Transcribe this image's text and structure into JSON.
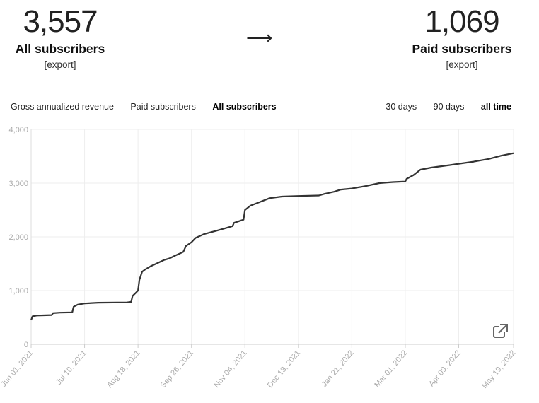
{
  "stats": {
    "left": {
      "value": "3,557",
      "label": "All subscribers",
      "export": "[export]"
    },
    "arrow": "⟶",
    "right": {
      "value": "1,069",
      "label": "Paid subscribers",
      "export": "[export]"
    }
  },
  "tabs": [
    {
      "label": "Gross annualized revenue",
      "active": false
    },
    {
      "label": "Paid subscribers",
      "active": false
    },
    {
      "label": "All subscribers",
      "active": true
    }
  ],
  "ranges": [
    {
      "label": "30 days",
      "active": false
    },
    {
      "label": "90 days",
      "active": false
    },
    {
      "label": "all time",
      "active": true
    }
  ],
  "icons": {
    "open_external": "external-link-icon"
  },
  "colors": {
    "line": "#333333",
    "grid": "#eeeeee",
    "axis_text": "#aaaaaa"
  },
  "chart_data": {
    "type": "line",
    "title": "",
    "xlabel": "",
    "ylabel": "",
    "ylim": [
      0,
      4000
    ],
    "yticks": [
      0,
      1000,
      2000,
      3000,
      4000
    ],
    "ytick_labels": [
      "0",
      "1,000",
      "2,000",
      "3,000",
      "4,000"
    ],
    "xticks": [
      "2021-06-01",
      "2021-07-10",
      "2021-08-18",
      "2021-09-26",
      "2021-11-04",
      "2021-12-13",
      "2022-01-21",
      "2022-03-01",
      "2022-04-09",
      "2022-05-19"
    ],
    "xtick_labels": [
      "Jun 01, 2021",
      "Jul 10, 2021",
      "Aug 18, 2021",
      "Sep 26, 2021",
      "Nov 04, 2021",
      "Dec 13, 2021",
      "Jan 21, 2022",
      "Mar 01, 2022",
      "Apr 09, 2022",
      "May 19, 2022"
    ],
    "grid": true,
    "series": [
      {
        "points": [
          [
            "2021-06-01",
            450
          ],
          [
            "2021-06-02",
            520
          ],
          [
            "2021-06-05",
            535
          ],
          [
            "2021-06-10",
            540
          ],
          [
            "2021-06-16",
            545
          ],
          [
            "2021-06-17",
            580
          ],
          [
            "2021-06-22",
            590
          ],
          [
            "2021-07-01",
            595
          ],
          [
            "2021-07-02",
            700
          ],
          [
            "2021-07-05",
            740
          ],
          [
            "2021-07-10",
            760
          ],
          [
            "2021-07-20",
            775
          ],
          [
            "2021-08-10",
            780
          ],
          [
            "2021-08-13",
            790
          ],
          [
            "2021-08-14",
            900
          ],
          [
            "2021-08-16",
            950
          ],
          [
            "2021-08-18",
            1000
          ],
          [
            "2021-08-19",
            1200
          ],
          [
            "2021-08-21",
            1350
          ],
          [
            "2021-08-23",
            1390
          ],
          [
            "2021-08-27",
            1450
          ],
          [
            "2021-09-01",
            1510
          ],
          [
            "2021-09-06",
            1570
          ],
          [
            "2021-09-10",
            1600
          ],
          [
            "2021-09-14",
            1650
          ],
          [
            "2021-09-20",
            1720
          ],
          [
            "2021-09-22",
            1830
          ],
          [
            "2021-09-26",
            1900
          ],
          [
            "2021-09-29",
            1980
          ],
          [
            "2021-10-05",
            2050
          ],
          [
            "2021-10-15",
            2120
          ],
          [
            "2021-10-22",
            2170
          ],
          [
            "2021-10-26",
            2200
          ],
          [
            "2021-10-27",
            2260
          ],
          [
            "2021-11-03",
            2320
          ],
          [
            "2021-11-04",
            2500
          ],
          [
            "2021-11-08",
            2580
          ],
          [
            "2021-11-15",
            2650
          ],
          [
            "2021-11-22",
            2720
          ],
          [
            "2021-12-01",
            2750
          ],
          [
            "2021-12-13",
            2760
          ],
          [
            "2021-12-28",
            2770
          ],
          [
            "2022-01-01",
            2800
          ],
          [
            "2022-01-08",
            2840
          ],
          [
            "2022-01-13",
            2880
          ],
          [
            "2022-01-21",
            2900
          ],
          [
            "2022-02-01",
            2950
          ],
          [
            "2022-02-10",
            3000
          ],
          [
            "2022-02-20",
            3020
          ],
          [
            "2022-03-01",
            3030
          ],
          [
            "2022-03-02",
            3080
          ],
          [
            "2022-03-07",
            3150
          ],
          [
            "2022-03-12",
            3250
          ],
          [
            "2022-03-20",
            3290
          ],
          [
            "2022-04-01",
            3330
          ],
          [
            "2022-04-09",
            3360
          ],
          [
            "2022-04-20",
            3400
          ],
          [
            "2022-05-01",
            3450
          ],
          [
            "2022-05-10",
            3510
          ],
          [
            "2022-05-19",
            3557
          ]
        ]
      }
    ]
  }
}
